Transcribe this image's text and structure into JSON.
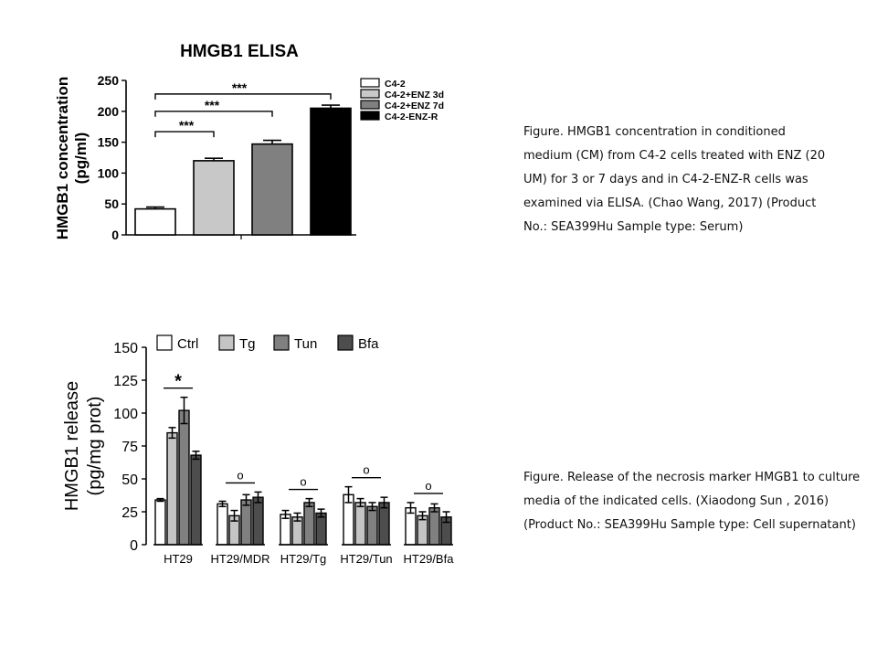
{
  "chart_data": [
    {
      "type": "bar",
      "title": "HMGB1 ELISA",
      "ylabel": "HMGB1 concentration (pg/ml)",
      "ylim": [
        0,
        250
      ],
      "yticks": [
        0,
        50,
        100,
        150,
        200,
        250
      ],
      "categories": [
        "C4-2",
        "C4-2+ENZ 3d",
        "C4-2+ENZ 7d",
        "C4-2-ENZ-R"
      ],
      "values": [
        42,
        120,
        147,
        205
      ],
      "errors": [
        3,
        4,
        6,
        5
      ],
      "colors": [
        "#ffffff",
        "#c8c8c8",
        "#808080",
        "#000000"
      ],
      "legend": [
        "C4-2",
        "C4-2+ENZ 3d",
        "C4-2+ENZ 7d",
        "C4-2-ENZ-R"
      ],
      "legend_position": "top-right",
      "significance": [
        "***",
        "***",
        "***"
      ]
    },
    {
      "type": "bar",
      "ylabel": "HMGB1 release (pg/mg prot)",
      "ylim": [
        0,
        150
      ],
      "yticks": [
        0,
        25,
        50,
        75,
        100,
        125,
        150
      ],
      "categories": [
        "HT29",
        "HT29/MDR",
        "HT29/Tg",
        "HT29/Tun",
        "HT29/Bfa"
      ],
      "series": [
        {
          "name": "Ctrl",
          "color": "#ffffff",
          "values": [
            34,
            31,
            23,
            38,
            28
          ],
          "errors": [
            1,
            2,
            3,
            6,
            4
          ]
        },
        {
          "name": "Tg",
          "color": "#c4c4c4",
          "values": [
            85,
            22,
            21,
            32,
            22
          ],
          "errors": [
            4,
            4,
            3,
            3,
            3
          ]
        },
        {
          "name": "Tun",
          "color": "#808080",
          "values": [
            102,
            34,
            32,
            29,
            28
          ],
          "errors": [
            10,
            4,
            3,
            3,
            3
          ]
        },
        {
          "name": "Bfa",
          "color": "#4d4d4d",
          "values": [
            68,
            36,
            24,
            32,
            21
          ],
          "errors": [
            3,
            4,
            3,
            4,
            4
          ]
        }
      ],
      "legend_position": "top",
      "annotations": [
        "*",
        "o",
        "o",
        "o",
        "o"
      ]
    }
  ],
  "captions": {
    "chart1": "Figure. HMGB1 concentration in conditioned medium (CM) from C4-2 cells treated with ENZ (20 UM) for 3 or 7 days and in C4-2-ENZ-R cells was examined via ELISA. (Chao Wang, 2017) (Product No.: SEA399Hu Sample type: Serum)",
    "chart2": "Figure. Release of the necrosis marker HMGB1 to culture media of the indicated cells. (Xiaodong Sun , 2016) (Product No.: SEA399Hu Sample type: Cell supernatant)"
  }
}
